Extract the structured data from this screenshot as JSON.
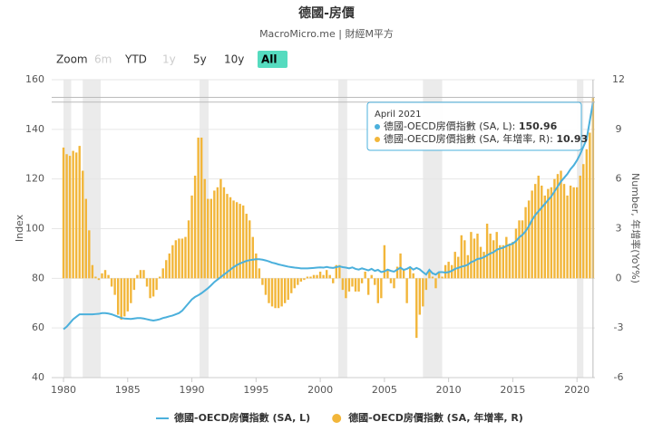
{
  "chart_data": {
    "type": "combo",
    "title": "德國-房價",
    "subtitle": "MacroMicro.me | 財經M平方",
    "y_axis_label": "Index",
    "y2_axis_label": "Number, 年增率(YoY%)",
    "zoom": {
      "label": "Zoom",
      "buttons": [
        "6m",
        "YTD",
        "1y",
        "5y",
        "10y",
        "All"
      ],
      "disabled": [
        "6m",
        "1y"
      ],
      "selected": "All"
    },
    "xlim": [
      1979.08,
      2021.4
    ],
    "xticks": [
      1980,
      1985,
      1990,
      1995,
      2000,
      2005,
      2010,
      2015,
      2020
    ],
    "ylim": [
      40,
      160
    ],
    "yticks": [
      40,
      60,
      80,
      100,
      120,
      140,
      160
    ],
    "y2lim": [
      -6,
      12
    ],
    "y2ticks": [
      -6,
      -3,
      0,
      3,
      6,
      9,
      12
    ],
    "grid": true,
    "plot_bands": [
      [
        1980,
        1980.6
      ],
      [
        1981.5,
        1982.9
      ],
      [
        1990.6,
        1991.3
      ],
      [
        2001.4,
        2002.1
      ],
      [
        2008,
        2009.5
      ],
      [
        2020,
        2020.5
      ]
    ],
    "x": [
      1980,
      1980.25,
      1980.5,
      1980.75,
      1981,
      1981.25,
      1981.5,
      1981.75,
      1982,
      1982.25,
      1982.5,
      1982.75,
      1983,
      1983.25,
      1983.5,
      1983.75,
      1984,
      1984.25,
      1984.5,
      1984.75,
      1985,
      1985.25,
      1985.5,
      1985.75,
      1986,
      1986.25,
      1986.5,
      1986.75,
      1987,
      1987.25,
      1987.5,
      1987.75,
      1988,
      1988.25,
      1988.5,
      1988.75,
      1989,
      1989.25,
      1989.5,
      1989.75,
      1990,
      1990.25,
      1990.5,
      1990.75,
      1991,
      1991.25,
      1991.5,
      1991.75,
      1992,
      1992.25,
      1992.5,
      1992.75,
      1993,
      1993.25,
      1993.5,
      1993.75,
      1994,
      1994.25,
      1994.5,
      1994.75,
      1995,
      1995.25,
      1995.5,
      1995.75,
      1996,
      1996.25,
      1996.5,
      1996.75,
      1997,
      1997.25,
      1997.5,
      1997.75,
      1998,
      1998.25,
      1998.5,
      1998.75,
      1999,
      1999.25,
      1999.5,
      1999.75,
      2000,
      2000.25,
      2000.5,
      2000.75,
      2001,
      2001.25,
      2001.5,
      2001.75,
      2002,
      2002.25,
      2002.5,
      2002.75,
      2003,
      2003.25,
      2003.5,
      2003.75,
      2004,
      2004.25,
      2004.5,
      2004.75,
      2005,
      2005.25,
      2005.5,
      2005.75,
      2006,
      2006.25,
      2006.5,
      2006.75,
      2007,
      2007.25,
      2007.5,
      2007.75,
      2008,
      2008.25,
      2008.5,
      2008.75,
      2009,
      2009.25,
      2009.5,
      2009.75,
      2010,
      2010.25,
      2010.5,
      2010.75,
      2011,
      2011.25,
      2011.5,
      2011.75,
      2012,
      2012.25,
      2012.5,
      2012.75,
      2013,
      2013.25,
      2013.5,
      2013.75,
      2014,
      2014.25,
      2014.5,
      2014.75,
      2015,
      2015.25,
      2015.5,
      2015.75,
      2016,
      2016.25,
      2016.5,
      2016.75,
      2017,
      2017.25,
      2017.5,
      2017.75,
      2018,
      2018.25,
      2018.5,
      2018.75,
      2019,
      2019.25,
      2019.5,
      2019.75,
      2020,
      2020.25,
      2020.5,
      2020.75,
      2021,
      2021.25
    ],
    "series": [
      {
        "name": "德國-OECD房價指數 (SA, L)",
        "type": "line",
        "color": "#4bb0dc",
        "values": [
          59.5,
          60.5,
          62,
          63.5,
          64.5,
          65.5,
          65.5,
          65.5,
          65.5,
          65.5,
          65.6,
          65.7,
          66,
          66,
          65.8,
          65.5,
          65,
          64.5,
          64,
          63.8,
          63.7,
          63.6,
          63.8,
          64,
          64,
          63.8,
          63.5,
          63.2,
          63,
          63.2,
          63.5,
          64,
          64.3,
          64.7,
          65,
          65.5,
          66,
          67,
          68.5,
          70,
          71.5,
          72.5,
          73.2,
          74,
          75,
          76,
          77.2,
          78.5,
          79.5,
          80.5,
          81.5,
          82.5,
          83.5,
          84.5,
          85.3,
          86,
          86.5,
          87,
          87.3,
          87.5,
          87.7,
          87.7,
          87.5,
          87.2,
          86.8,
          86.3,
          86,
          85.6,
          85.3,
          85,
          84.7,
          84.5,
          84.3,
          84.2,
          84,
          84,
          84,
          84.1,
          84.2,
          84.3,
          84.4,
          84.3,
          84.6,
          84.3,
          84.2,
          84.5,
          84.8,
          84.5,
          84.3,
          84,
          84.4,
          83.8,
          83.5,
          84,
          83.6,
          83.2,
          83.8,
          83,
          83.4,
          82.5,
          82.8,
          83.5,
          83,
          82.7,
          83.5,
          84.3,
          83.4,
          83.8,
          84.5,
          83.5,
          84.2,
          83.6,
          82.5,
          81.5,
          83.4,
          82,
          81.5,
          82.5,
          82.5,
          82.3,
          82.5,
          83,
          83.8,
          84.2,
          84.7,
          85,
          85.5,
          86.5,
          87,
          87.8,
          88,
          88.5,
          89.3,
          90,
          90.5,
          91.5,
          92,
          92.3,
          93,
          93.5,
          94,
          95,
          96.5,
          97.5,
          99,
          101,
          103.5,
          105.5,
          107,
          108.5,
          110,
          111.5,
          113,
          115,
          117,
          119,
          120.5,
          122,
          124,
          125.5,
          127.5,
          130,
          133,
          136,
          143.5,
          150.96
        ]
      },
      {
        "name": "德國-OECD房價指數 (SA, 年增率, R)",
        "type": "bar",
        "axis": "y2",
        "color": "#f2b63a",
        "values": [
          7.9,
          7.5,
          7.4,
          7.7,
          7.6,
          8.0,
          6.5,
          4.8,
          2.9,
          0.8,
          0.1,
          -0.1,
          0.3,
          0.5,
          0.2,
          -0.5,
          -1,
          -2.2,
          -2.5,
          -2.3,
          -2,
          -1.5,
          -0.7,
          0.2,
          0.5,
          0.5,
          -0.5,
          -1.2,
          -1.1,
          -0.7,
          0.1,
          0.6,
          1.1,
          1.5,
          2.0,
          2.3,
          2.4,
          2.4,
          2.5,
          3.5,
          5.0,
          6.2,
          8.5,
          8.5,
          6.0,
          4.8,
          4.8,
          5.3,
          5.5,
          6.0,
          5.5,
          5.1,
          4.9,
          4.7,
          4.6,
          4.5,
          4.4,
          3.9,
          3.5,
          2.5,
          1.5,
          0.6,
          -0.4,
          -1.0,
          -1.5,
          -1.7,
          -1.8,
          -1.8,
          -1.7,
          -1.5,
          -1.3,
          -0.9,
          -0.6,
          -0.4,
          -0.2,
          -0.1,
          0.1,
          0.1,
          0.2,
          0.2,
          0.4,
          0.2,
          0.5,
          0.2,
          -0.3,
          0.8,
          0.8,
          -0.7,
          -1.2,
          -0.8,
          -0.5,
          -0.8,
          -0.8,
          -0.3,
          0.4,
          -1.0,
          0.2,
          -0.4,
          -1.5,
          -1.2,
          2.0,
          0.5,
          -0.3,
          -0.6,
          0.7,
          1.5,
          0.5,
          -1.5,
          0.6,
          0.3,
          -3.6,
          -2.2,
          -1.7,
          -0.7,
          0.4,
          0.1,
          -0.6,
          0.4,
          0.1,
          0.8,
          1.0,
          0.8,
          1.6,
          1.3,
          2.6,
          2.3,
          1.4,
          2.8,
          2.4,
          2.7,
          1.9,
          1.6,
          3.3,
          2.7,
          2.3,
          2.8,
          2.0,
          2.0,
          2.5,
          2.1,
          2.2,
          3.0,
          3.5,
          3.5,
          4.3,
          4.7,
          5.3,
          5.7,
          6.2,
          5.6,
          5.0,
          5.4,
          5.5,
          6.0,
          6.3,
          6.5,
          5.7,
          5.0,
          5.6,
          5.5,
          5.5,
          6.2,
          6.9,
          7.8,
          8.8,
          10.93
        ]
      }
    ],
    "tooltip": {
      "title": "April 2021",
      "index": 165,
      "rows": [
        "德國-OECD房價指數 (SA, L): ",
        "德國-OECD房價指數 (SA, 年增率, R): "
      ]
    }
  }
}
